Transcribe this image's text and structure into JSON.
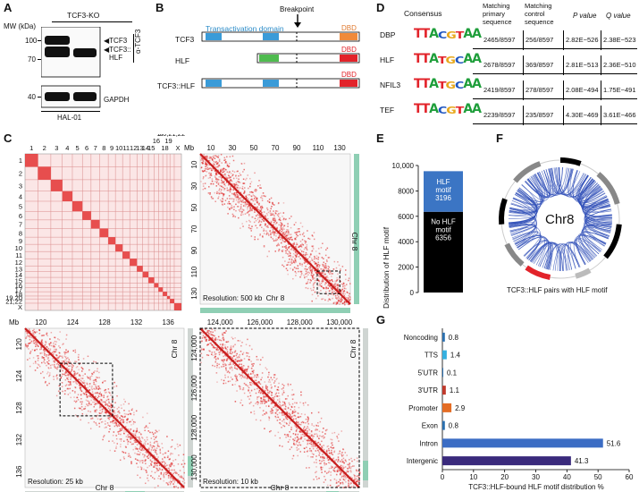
{
  "panelA": {
    "letter": "A",
    "title": "TCF3-KO",
    "mw_label": "MW (kDa)",
    "mw_marks": [
      "100",
      "70",
      "40"
    ],
    "band_labels": [
      "TCF3",
      "TCF3::",
      "HLF"
    ],
    "antibody": "α-TCF3",
    "loading_label": "GAPDH",
    "cell_line": "HAL-01"
  },
  "panelB": {
    "letter": "B",
    "breakpoint": "Breakpoint",
    "domain_label": "Transactivation domain",
    "dbd_label": "DBD",
    "rows": [
      "TCF3",
      "HLF",
      "TCF3::HLF"
    ]
  },
  "panelC": {
    "letter": "C",
    "chromosomes_top": [
      "1",
      "2",
      "3",
      "4",
      "5",
      "6",
      "7",
      "8",
      "9",
      "10",
      "11",
      "12",
      "13",
      "14",
      "15",
      "16",
      "17",
      "18",
      "19",
      "20,21,22",
      "X"
    ],
    "chromosomes_top_display": [
      "1",
      "2",
      "3",
      "4",
      "5",
      "6",
      "7",
      "8",
      "9",
      "10",
      "11",
      "12",
      "13",
      "14",
      "15",
      "16",
      "17",
      "18",
      "19",
      "20,21,22",
      "X"
    ],
    "chromosomes_left": [
      "1",
      "2",
      "3",
      "4",
      "5",
      "6",
      "7",
      "8",
      "9",
      "10",
      "11",
      "12",
      "13",
      "14",
      "15",
      "16",
      "17",
      "18",
      "19,20",
      "21,22",
      "X"
    ],
    "tr_mb": "Mb",
    "tr_ticks": [
      "10",
      "30",
      "50",
      "70",
      "90",
      "110",
      "130"
    ],
    "tr_left_ticks": [
      "10",
      "30",
      "50",
      "70",
      "90",
      "110",
      "130"
    ],
    "tr_resolution": "Resolution: 500 kb",
    "tr_chr": "Chr 8",
    "bl_mb": "Mb",
    "bl_ticks": [
      "120",
      "124",
      "128",
      "132",
      "136"
    ],
    "bl_left_ticks": [
      "120",
      "124",
      "128",
      "132",
      "136"
    ],
    "bl_resolution": "Resolution: 25 kb",
    "bl_chr": "Chr 8",
    "br_ticks": [
      "124,000",
      "126,000",
      "128,000",
      "130,000"
    ],
    "br_left_ticks": [
      "124,000",
      "126,000",
      "128,000",
      "130,000"
    ],
    "br_resolution": "Resolution: 10 kb",
    "br_chr": "Chr 8"
  },
  "panelD": {
    "letter": "D",
    "headers": [
      "Consensus",
      "Matching primary sequence",
      "Matching control sequence",
      "P value",
      "Q value"
    ],
    "rows": [
      {
        "name": "DBP",
        "logo": "TTACGTAA",
        "primary": "2465/8597",
        "control": "256/8597",
        "p": "2.82E−526",
        "q": "2.38E−523"
      },
      {
        "name": "HLF",
        "logo": "TTATGCAA",
        "primary": "2678/8597",
        "control": "369/8597",
        "p": "2.81E−513",
        "q": "2.36E−510"
      },
      {
        "name": "NFIL3",
        "logo": "TTATGCAA",
        "primary": "2419/8597",
        "control": "278/8597",
        "p": "2.08E−494",
        "q": "1.75E−491"
      },
      {
        "name": "TEF",
        "logo": "TTACGTAA",
        "primary": "2239/8597",
        "control": "235/8597",
        "p": "4.30E−469",
        "q": "3.61E−466"
      }
    ]
  },
  "panelE": {
    "letter": "E",
    "ylabel": "Distribution of HLF motif",
    "yticks": [
      "10,000",
      "8000",
      "6000",
      "4000",
      "2000",
      "0"
    ],
    "top_segment": {
      "label": "HLF motif",
      "value": "3196",
      "color": "#3b75c4"
    },
    "bottom_segment": {
      "label": "No HLF motif",
      "value": "6356",
      "color": "#000000"
    }
  },
  "panelF": {
    "letter": "F",
    "center_label": "Chr8",
    "caption": "TCF3::HLF pairs with HLF motif"
  },
  "panelG": {
    "letter": "G",
    "xlabel": "TCF3::HLF-bound HLF motif distribution %",
    "xticks": [
      "0",
      "10",
      "20",
      "30",
      "40",
      "50",
      "60"
    ]
  },
  "chart_data": {
    "type": "bar",
    "orientation": "horizontal",
    "categories": [
      "Noncoding",
      "TTS",
      "5'UTR",
      "3'UTR",
      "Promoter",
      "Exon",
      "Intron",
      "Intergenic"
    ],
    "values": [
      0.8,
      1.4,
      0.1,
      1.1,
      2.9,
      0.8,
      51.6,
      41.3
    ],
    "colors": [
      "#2a6fb0",
      "#34b0e0",
      "#2a6fb0",
      "#c0392b",
      "#e46c24",
      "#2a6fb0",
      "#3b6cc4",
      "#3a2a7c"
    ],
    "xlabel": "TCF3::HLF-bound HLF motif distribution %",
    "xlim": [
      0,
      60
    ]
  }
}
